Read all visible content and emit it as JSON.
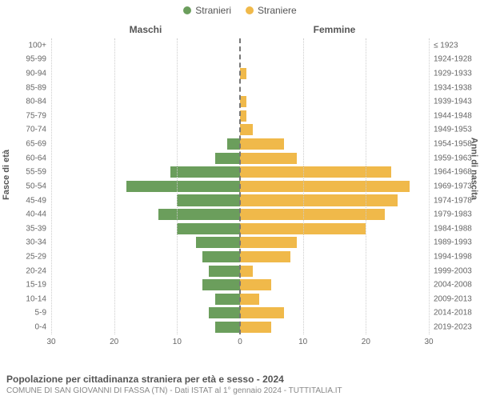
{
  "legend": {
    "series": [
      {
        "label": "Stranieri",
        "color": "#6b9e5c"
      },
      {
        "label": "Straniere",
        "color": "#f0b94a"
      }
    ]
  },
  "chart": {
    "type": "population-pyramid",
    "left_title": "Maschi",
    "right_title": "Femmine",
    "y_left_title": "Fasce di età",
    "y_right_title": "Anni di nascita",
    "xlim": 30,
    "xticks": [
      30,
      20,
      10,
      0,
      10,
      20,
      30
    ],
    "background_color": "#ffffff",
    "grid_color": "#cccccc",
    "rows": [
      {
        "age": "100+",
        "birth": "≤ 1923",
        "m": 0,
        "f": 0
      },
      {
        "age": "95-99",
        "birth": "1924-1928",
        "m": 0,
        "f": 0
      },
      {
        "age": "90-94",
        "birth": "1929-1933",
        "m": 0,
        "f": 1
      },
      {
        "age": "85-89",
        "birth": "1934-1938",
        "m": 0,
        "f": 0
      },
      {
        "age": "80-84",
        "birth": "1939-1943",
        "m": 0,
        "f": 1
      },
      {
        "age": "75-79",
        "birth": "1944-1948",
        "m": 0,
        "f": 1
      },
      {
        "age": "70-74",
        "birth": "1949-1953",
        "m": 0,
        "f": 2
      },
      {
        "age": "65-69",
        "birth": "1954-1958",
        "m": 2,
        "f": 7
      },
      {
        "age": "60-64",
        "birth": "1959-1963",
        "m": 4,
        "f": 9
      },
      {
        "age": "55-59",
        "birth": "1964-1968",
        "m": 11,
        "f": 24
      },
      {
        "age": "50-54",
        "birth": "1969-1973",
        "m": 18,
        "f": 27
      },
      {
        "age": "45-49",
        "birth": "1974-1978",
        "m": 10,
        "f": 25
      },
      {
        "age": "40-44",
        "birth": "1979-1983",
        "m": 13,
        "f": 23
      },
      {
        "age": "35-39",
        "birth": "1984-1988",
        "m": 10,
        "f": 20
      },
      {
        "age": "30-34",
        "birth": "1989-1993",
        "m": 7,
        "f": 9
      },
      {
        "age": "25-29",
        "birth": "1994-1998",
        "m": 6,
        "f": 8
      },
      {
        "age": "20-24",
        "birth": "1999-2003",
        "m": 5,
        "f": 2
      },
      {
        "age": "15-19",
        "birth": "2004-2008",
        "m": 6,
        "f": 5
      },
      {
        "age": "10-14",
        "birth": "2009-2013",
        "m": 4,
        "f": 3
      },
      {
        "age": "5-9",
        "birth": "2014-2018",
        "m": 5,
        "f": 7
      },
      {
        "age": "0-4",
        "birth": "2019-2023",
        "m": 4,
        "f": 5
      }
    ]
  },
  "caption": {
    "title": "Popolazione per cittadinanza straniera per età e sesso - 2024",
    "subtitle": "COMUNE DI SAN GIOVANNI DI FASSA (TN) - Dati ISTAT al 1° gennaio 2024 - TUTTITALIA.IT"
  }
}
